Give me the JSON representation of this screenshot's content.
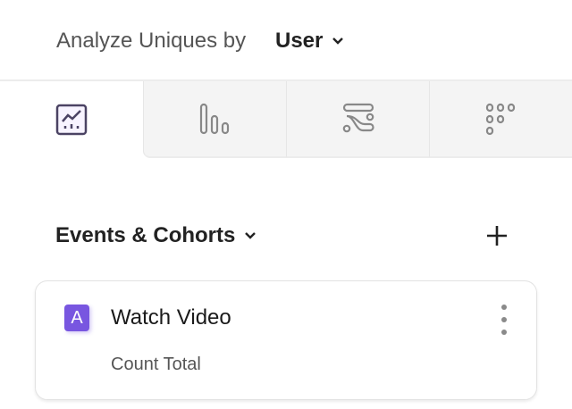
{
  "header": {
    "analyze_label": "Analyze Uniques by",
    "selected_value": "User"
  },
  "tabs": [
    {
      "name": "insights",
      "icon": "line-chart-icon",
      "active": true
    },
    {
      "name": "bar",
      "icon": "bar-chart-icon",
      "active": false
    },
    {
      "name": "flows",
      "icon": "flows-icon",
      "active": false
    },
    {
      "name": "retention",
      "icon": "retention-grid-icon",
      "active": false
    }
  ],
  "events_section": {
    "title": "Events & Cohorts",
    "add_icon": "plus-icon"
  },
  "events": [
    {
      "badge": "A",
      "name": "Watch Video",
      "measure": "Count Total"
    }
  ],
  "colors": {
    "accent": "#7856e0"
  }
}
